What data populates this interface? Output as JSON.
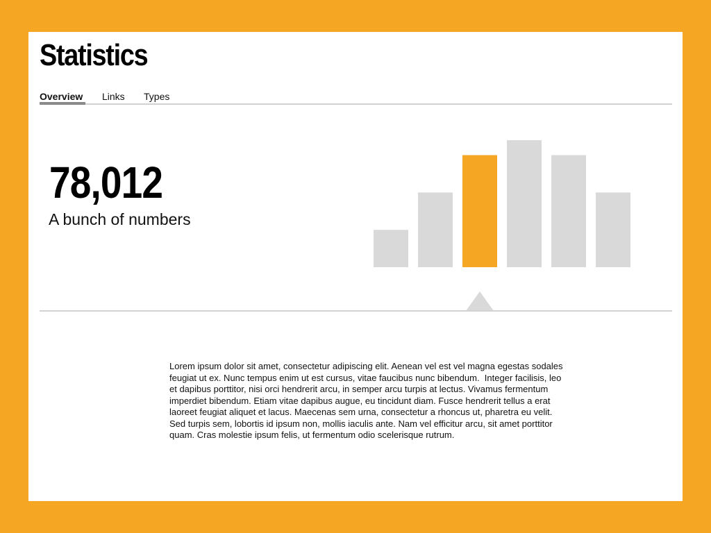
{
  "page": {
    "title": "Statistics",
    "accent_color": "#f5a623",
    "bar_color": "#d9d9d9"
  },
  "tabs": [
    {
      "label": "Overview",
      "active": true
    },
    {
      "label": "Links",
      "active": false
    },
    {
      "label": "Types",
      "active": false
    }
  ],
  "summary": {
    "value": "78,012",
    "caption": "A bunch of numbers"
  },
  "chart_data": {
    "type": "bar",
    "values": [
      3,
      6,
      9,
      10.2,
      9,
      6
    ],
    "highlighted_index": 2,
    "ylim": [
      0,
      10.2
    ],
    "grid": false
  },
  "body": {
    "text": "Lorem ipsum dolor sit amet, consectetur adipiscing elit. Aenean vel est vel magna egestas sodales feugiat ut ex. Nunc tempus enim ut est cursus, vitae faucibus nunc bibendum.  Integer facilisis, leo et dapibus porttitor, nisi orci hendrerit arcu, in semper arcu turpis at lectus. Vivamus fermentum imperdiet bibendum. Etiam vitae dapibus augue, eu tincidunt diam. Fusce hendrerit tellus a erat laoreet feugiat aliquet et lacus. Maecenas sem urna, consectetur a rhoncus ut, pharetra eu velit. Sed turpis sem, lobortis id ipsum non, mollis iaculis ante. Nam vel efficitur arcu, sit amet porttitor quam. Cras molestie ipsum felis, ut fermentum odio scelerisque rutrum."
  }
}
